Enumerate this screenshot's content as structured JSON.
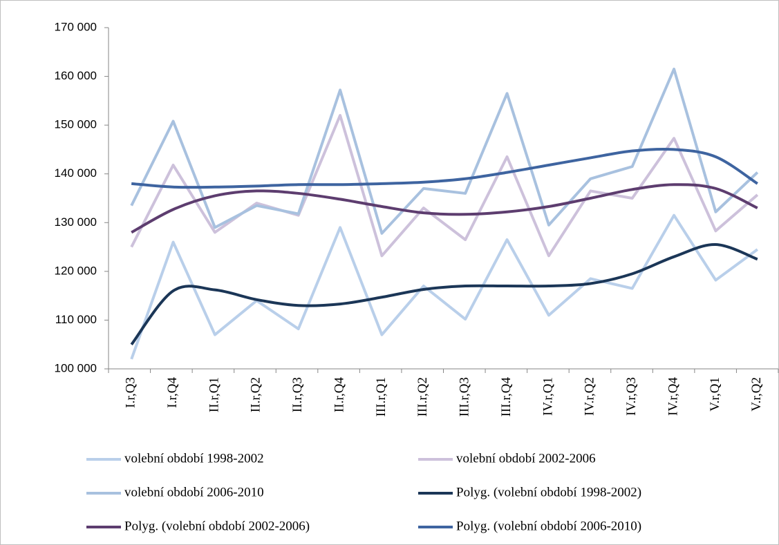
{
  "chart_data": {
    "type": "line",
    "categories": [
      "I.r,Q3",
      "I.r,Q4",
      "II.r,Q1",
      "II.r,Q2",
      "II.r,Q3",
      "II.r,Q4",
      "III.r,Q1",
      "III.r,Q2",
      "III.r,Q3",
      "III.r,Q4",
      "IV.r,Q1",
      "IV.r,Q2",
      "IV.r,Q3",
      "IV.r,Q4",
      "V.r,Q1",
      "V.r,Q2"
    ],
    "series": [
      {
        "name": "volební období 1998-2002",
        "color": "#b9cfea",
        "values": [
          102000,
          126000,
          107000,
          114000,
          108200,
          129000,
          107000,
          117000,
          110200,
          126500,
          111000,
          118500,
          116500,
          131500,
          118200,
          124500
        ]
      },
      {
        "name": "volební období 2002-2006",
        "color": "#cdc1db",
        "values": [
          125000,
          141800,
          128000,
          134000,
          131500,
          152000,
          123200,
          133000,
          126500,
          143500,
          123200,
          136500,
          135000,
          147300,
          128300,
          135700
        ]
      },
      {
        "name": "volební období 2006-2010",
        "color": "#a8c1df",
        "values": [
          133500,
          150800,
          129000,
          133500,
          131800,
          157200,
          127800,
          137000,
          136000,
          156500,
          129500,
          139000,
          141500,
          161500,
          132200,
          140300
        ]
      },
      {
        "name": "Polyg. (volební období 1998-2002)",
        "color": "#1b3657",
        "smooth": true,
        "values": [
          105000,
          116000,
          116200,
          114200,
          113000,
          113300,
          114700,
          116300,
          117000,
          117000,
          117000,
          117500,
          119500,
          123000,
          125500,
          122500
        ]
      },
      {
        "name": "Polyg. (volební období 2002-2006)",
        "color": "#5d3d6f",
        "smooth": true,
        "values": [
          128000,
          132700,
          135500,
          136500,
          136000,
          134800,
          133300,
          132000,
          131700,
          132200,
          133300,
          135000,
          136800,
          137800,
          137000,
          133000
        ]
      },
      {
        "name": "Polyg. (volební období 2006-2010)",
        "color": "#3e64a0",
        "smooth": true,
        "values": [
          138000,
          137300,
          137300,
          137500,
          137800,
          137800,
          138000,
          138300,
          139000,
          140300,
          141800,
          143300,
          144700,
          145000,
          143500,
          138000
        ]
      }
    ],
    "ylim": [
      100000,
      170000
    ],
    "yticks": [
      {
        "value": 100000,
        "label": "100 000"
      },
      {
        "value": 110000,
        "label": "110 000"
      },
      {
        "value": 120000,
        "label": "120 000"
      },
      {
        "value": 130000,
        "label": "130 000"
      },
      {
        "value": 140000,
        "label": "140 000"
      },
      {
        "value": 150000,
        "label": "150 000"
      },
      {
        "value": 160000,
        "label": "160 000"
      },
      {
        "value": 170000,
        "label": "170 000"
      }
    ],
    "grid": false,
    "legend": "bottom"
  }
}
